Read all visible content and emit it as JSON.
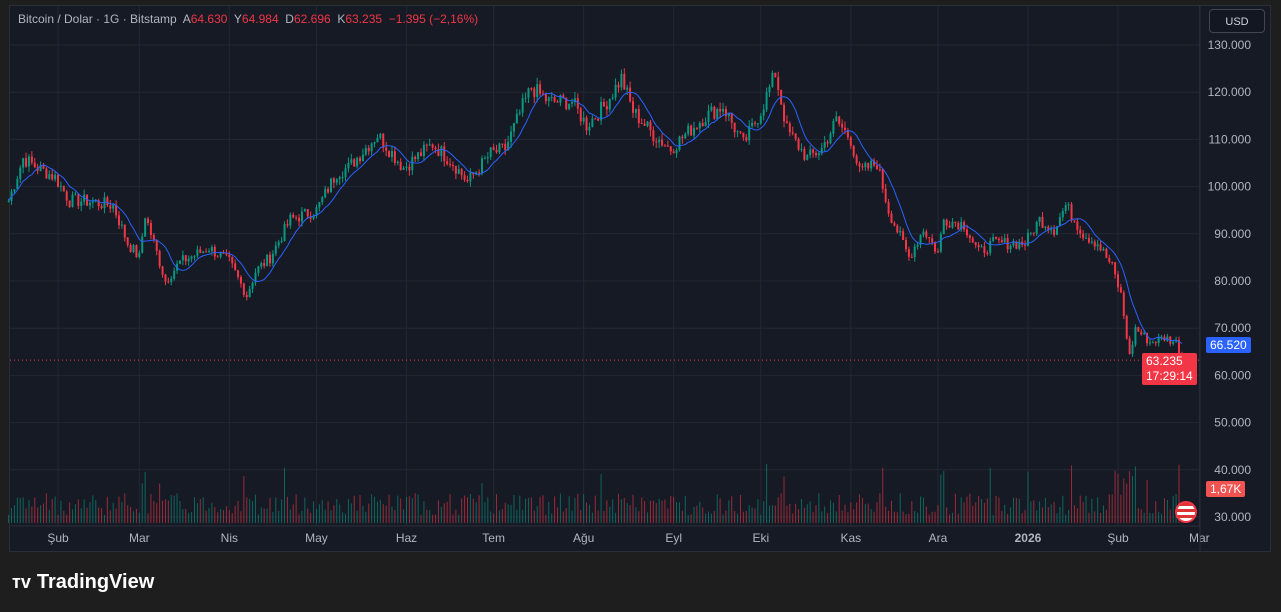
{
  "header": {
    "symbol": "Bitcoin / Dolar · 1G · Bitstamp",
    "o_label": "A",
    "o": "64.630",
    "h_label": "Y",
    "h": "64.984",
    "l_label": "D",
    "l": "62.696",
    "c_label": "K",
    "c": "63.235",
    "change": "−1.395 (−2,16%)"
  },
  "currency_button": "USD",
  "price_tags": {
    "ma": "66.520",
    "last": "63.235",
    "countdown": "17:29:14",
    "volume": "1,67K"
  },
  "brand": "TradingView",
  "colors": {
    "up": "#089981",
    "down": "#f23645",
    "ma": "#2962ff",
    "bg": "#161a25"
  },
  "chart_data": {
    "type": "candlestick",
    "y_ticks": [
      "130.000",
      "120.000",
      "110.000",
      "100.000",
      "90.000",
      "80.000",
      "70.000",
      "60.000",
      "50.000",
      "40.000",
      "30.000"
    ],
    "ylim": [
      30000,
      130000
    ],
    "x_ticks": [
      {
        "label": "Şub",
        "date": "2025-02-01"
      },
      {
        "label": "Mar",
        "date": "2025-03-01"
      },
      {
        "label": "Nis",
        "date": "2025-04-01"
      },
      {
        "label": "May",
        "date": "2025-05-01"
      },
      {
        "label": "Haz",
        "date": "2025-06-01"
      },
      {
        "label": "Tem",
        "date": "2025-07-01"
      },
      {
        "label": "Ağu",
        "date": "2025-08-01"
      },
      {
        "label": "Eyl",
        "date": "2025-09-01"
      },
      {
        "label": "Eki",
        "date": "2025-10-01"
      },
      {
        "label": "Kas",
        "date": "2025-11-01"
      },
      {
        "label": "Ara",
        "date": "2025-12-01"
      },
      {
        "label": "2026",
        "date": "2026-01-01"
      },
      {
        "label": "Şub",
        "date": "2026-02-01"
      },
      {
        "label": "Mar",
        "date": "2026-03-01"
      }
    ],
    "close_keypoints": [
      [
        "2025-01-15",
        97000
      ],
      [
        "2025-01-20",
        106000
      ],
      [
        "2025-01-25",
        104000
      ],
      [
        "2025-01-31",
        102000
      ],
      [
        "2025-02-05",
        97000
      ],
      [
        "2025-02-10",
        97000
      ],
      [
        "2025-02-20",
        96000
      ],
      [
        "2025-02-25",
        88000
      ],
      [
        "2025-03-01",
        85000
      ],
      [
        "2025-03-03",
        94000
      ],
      [
        "2025-03-10",
        80000
      ],
      [
        "2025-03-15",
        84000
      ],
      [
        "2025-03-25",
        87000
      ],
      [
        "2025-04-01",
        84000
      ],
      [
        "2025-04-07",
        77000
      ],
      [
        "2025-04-10",
        82000
      ],
      [
        "2025-04-15",
        85000
      ],
      [
        "2025-04-22",
        93000
      ],
      [
        "2025-05-01",
        95000
      ],
      [
        "2025-05-08",
        103000
      ],
      [
        "2025-05-12",
        104000
      ],
      [
        "2025-05-22",
        111000
      ],
      [
        "2025-05-31",
        104000
      ],
      [
        "2025-06-10",
        109000
      ],
      [
        "2025-06-17",
        105000
      ],
      [
        "2025-06-22",
        101000
      ],
      [
        "2025-06-30",
        107000
      ],
      [
        "2025-07-05",
        108000
      ],
      [
        "2025-07-11",
        117000
      ],
      [
        "2025-07-14",
        121000
      ],
      [
        "2025-07-20",
        118000
      ],
      [
        "2025-07-28",
        118000
      ],
      [
        "2025-08-02",
        113000
      ],
      [
        "2025-08-08",
        117000
      ],
      [
        "2025-08-14",
        123000
      ],
      [
        "2025-08-18",
        116000
      ],
      [
        "2025-08-25",
        111000
      ],
      [
        "2025-08-31",
        108000
      ],
      [
        "2025-09-05",
        111000
      ],
      [
        "2025-09-12",
        115000
      ],
      [
        "2025-09-18",
        117000
      ],
      [
        "2025-09-25",
        109000
      ],
      [
        "2025-10-01",
        116000
      ],
      [
        "2025-10-06",
        124000
      ],
      [
        "2025-10-10",
        112000
      ],
      [
        "2025-10-17",
        106000
      ],
      [
        "2025-10-22",
        108000
      ],
      [
        "2025-10-27",
        114000
      ],
      [
        "2025-11-01",
        110000
      ],
      [
        "2025-11-04",
        103000
      ],
      [
        "2025-11-10",
        105000
      ],
      [
        "2025-11-14",
        95000
      ],
      [
        "2025-11-21",
        85000
      ],
      [
        "2025-11-26",
        91000
      ],
      [
        "2025-12-01",
        86000
      ],
      [
        "2025-12-03",
        93000
      ],
      [
        "2025-12-10",
        92000
      ],
      [
        "2025-12-15",
        86000
      ],
      [
        "2025-12-20",
        88000
      ],
      [
        "2025-12-31",
        88000
      ],
      [
        "2026-01-05",
        93000
      ],
      [
        "2026-01-10",
        91000
      ],
      [
        "2026-01-14",
        96000
      ],
      [
        "2026-01-20",
        90000
      ],
      [
        "2026-01-25",
        88000
      ],
      [
        "2026-01-30",
        83000
      ],
      [
        "2026-02-02",
        77000
      ],
      [
        "2026-02-05",
        64000
      ],
      [
        "2026-02-07",
        70000
      ],
      [
        "2026-02-12",
        67000
      ],
      [
        "2026-02-17",
        68000
      ],
      [
        "2026-02-21",
        67000
      ],
      [
        "2026-02-23",
        63235
      ]
    ],
    "ma_last": 66520,
    "last_price": 63235
  }
}
